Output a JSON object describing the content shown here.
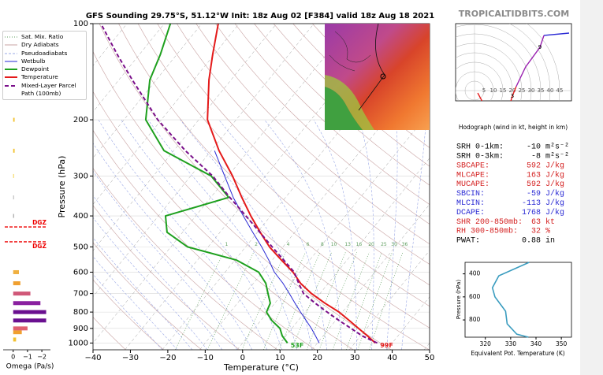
{
  "header": {
    "title": "GFS Sounding 29.75°S, 51.12°W Init: 18z Aug 02 [F384] valid 18z Aug 18 2021",
    "site": "TROPICALTIDBITS.COM"
  },
  "chart_data": [
    {
      "type": "skew-t",
      "xlabel": "Temperature (°C)",
      "ylabel": "Pressure (hPa)",
      "xlim": [
        -40,
        50
      ],
      "ylim": [
        1050,
        100
      ],
      "log_y": true,
      "grid": true,
      "xticks": [
        {
          "value": -40,
          "label": "−40"
        },
        {
          "value": -30,
          "label": "−30"
        },
        {
          "value": -20,
          "label": "−20"
        },
        {
          "value": -10,
          "label": "−10"
        },
        0,
        10,
        20,
        30,
        40,
        50
      ],
      "yticks": [
        100,
        200,
        300,
        400,
        500,
        600,
        700,
        800,
        900,
        1000
      ],
      "background_lines": [
        {
          "name": "Sat. Mix. Ratio",
          "color": "#5e9e5e",
          "dash": "1,2"
        },
        {
          "name": "Dry Adiabats",
          "color": "#c9a3a3",
          "dash": "none"
        },
        {
          "name": "Pseudoadiabats",
          "color": "#9aa8e6",
          "dash": "3,2"
        }
      ],
      "mixing_ratios": [
        1,
        2,
        4,
        6,
        8,
        10,
        13,
        16,
        20,
        25,
        30,
        36
      ],
      "series": [
        {
          "name": "Wetbulb",
          "color": "#2a2ad4",
          "width": 1,
          "dash": "none",
          "y": [
            1000,
            950,
            900,
            850,
            800,
            750,
            700,
            650,
            600,
            550,
            500,
            450,
            400,
            350,
            300,
            250
          ],
          "x": [
            20.5,
            19.5,
            18.4,
            17,
            15.5,
            14,
            12.5,
            10.8,
            8.5,
            7,
            5.1,
            2.7,
            0.2,
            -2.5,
            -4.8,
            -7.5
          ]
        },
        {
          "name": "Dewpoint",
          "color": "#1ea01e",
          "width": 2,
          "dash": "none",
          "y": [
            1000,
            950,
            900,
            850,
            800,
            750,
            700,
            650,
            600,
            550,
            500,
            450,
            400,
            350,
            300,
            250,
            200,
            150,
            125,
            100
          ],
          "x": [
            12,
            10.6,
            10,
            7.8,
            6.4,
            7.4,
            6.8,
            6.2,
            4.3,
            -1.6,
            -14.7,
            -20.2,
            -20.6,
            -3.7,
            -8.4,
            -21,
            -25.9,
            -24.8,
            -22,
            -19.3
          ]
        },
        {
          "name": "Temperature",
          "color": "#e41a1a",
          "width": 2,
          "dash": "none",
          "y": [
            1000,
            950,
            900,
            850,
            800,
            750,
            700,
            650,
            600,
            550,
            500,
            450,
            400,
            350,
            300,
            250,
            200,
            150,
            125,
            100
          ],
          "x": [
            35.5,
            33.4,
            31,
            28.5,
            25.8,
            22,
            18.4,
            15.5,
            13.5,
            10.4,
            7.2,
            4.7,
            2.2,
            -0.2,
            -2.7,
            -6.3,
            -9.4,
            -9,
            -8,
            -6.5
          ]
        },
        {
          "name": "Mixed-Layer Parcel Path (100mb)",
          "color": "#7a0f8a",
          "width": 2,
          "dash": "5,3",
          "y": [
            1000,
            950,
            900,
            850,
            800,
            750,
            700,
            650,
            600,
            550,
            500,
            450,
            400,
            350,
            300,
            250,
            200,
            150,
            125,
            100
          ],
          "x": [
            36,
            32,
            29,
            25.8,
            22.6,
            19.4,
            16.3,
            15,
            13.8,
            11,
            7.9,
            4.6,
            0.9,
            -3.4,
            -8,
            -15.3,
            -22.7,
            -29.5,
            -33.5,
            -37.9
          ]
        }
      ],
      "surface_labels": {
        "dewpoint": "53F",
        "temperature": "99F"
      }
    },
    {
      "type": "barh",
      "xlabel": "Omega (Pa/s)",
      "xlim": [
        0.7,
        -2.6
      ],
      "ylim": [
        1050,
        100
      ],
      "log_y": true,
      "xticks": [
        0,
        {
          "value": -1,
          "label": "−1"
        },
        {
          "value": -2,
          "label": "−2"
        }
      ],
      "pressures": [
        975,
        925,
        900,
        850,
        800,
        750,
        700,
        650,
        600,
        400,
        350,
        300,
        250,
        200
      ],
      "values": [
        -0.2,
        -0.6,
        -1.0,
        -2.3,
        -2.3,
        -1.9,
        -1.2,
        -0.5,
        -0.4,
        -0.05,
        -0.05,
        -0.05,
        -0.1,
        -0.1
      ],
      "colors": [
        "#f2c12e",
        "#f0a030",
        "#e06070",
        "#6a1090",
        "#6a1090",
        "#8a20a0",
        "#d05878",
        "#f0a030",
        "#f0b040",
        "#888888",
        "#aaaaaa",
        "#f2d040",
        "#f2c12e",
        "#f2c12e"
      ],
      "dgz": [
        {
          "label": "DGZ",
          "pressure": 433
        },
        {
          "label": "DGZ",
          "pressure": 482
        }
      ]
    },
    {
      "type": "hodograph",
      "title": "Hodograph (wind in kt, height in km)",
      "rings": [
        5,
        10,
        15,
        20,
        25,
        30,
        35,
        40,
        45
      ],
      "series": [
        {
          "color": "#e41a1a",
          "u": [
            1.7,
            7.9,
            17.9,
            20,
            22
          ],
          "v": [
            -1.3,
            -12.9,
            -9.6,
            -2.9,
            2.1
          ]
        },
        {
          "color": "#9a20b0",
          "u": [
            22,
            27,
            34.6,
            36.7
          ],
          "v": [
            2.1,
            12.5,
            22.9,
            29.2
          ]
        },
        {
          "color": "#2a2ad4",
          "u": [
            36.7,
            50
          ],
          "v": [
            29.2,
            30.4
          ]
        }
      ],
      "heights": [
        {
          "km": 1,
          "u": 7.9,
          "v": -12.9
        },
        {
          "km": 2,
          "u": 17.9,
          "v": -9.6
        },
        {
          "km": 3,
          "u": 20,
          "v": -2.9
        },
        {
          "km": 9,
          "u": 34.6,
          "v": 22.9
        }
      ]
    },
    {
      "type": "line",
      "xlabel": "Equivalent Pot. Temperature (K)",
      "ylabel": "Pressure (hPa)",
      "xlim": [
        312,
        354
      ],
      "ylim": [
        950,
        300
      ],
      "xticks": [
        320,
        330,
        340,
        350
      ],
      "yticks": [
        400,
        600,
        800
      ],
      "color": "#3a9cbf",
      "y": [
        300,
        417,
        520,
        600,
        724,
        834,
        924,
        950
      ],
      "x": [
        337.3,
        325.3,
        322.8,
        323.8,
        328,
        328.6,
        332.4,
        337
      ]
    }
  ],
  "indices": [
    {
      "label": "SRH 0-1km:",
      "value": -10,
      "unit": "m²s⁻²",
      "color": "#000000"
    },
    {
      "label": "SRH 0-3km:",
      "value": -8,
      "unit": "m²s⁻²",
      "color": "#000000"
    },
    {
      "label": "SBCAPE:",
      "value": 592,
      "unit": "J/kg",
      "color": "#d42020"
    },
    {
      "label": "MLCAPE:",
      "value": 163,
      "unit": "J/kg",
      "color": "#d42020"
    },
    {
      "label": "MUCAPE:",
      "value": 592,
      "unit": "J/kg",
      "color": "#d42020"
    },
    {
      "label": "SBCIN:",
      "value": -59,
      "unit": "J/kg",
      "color": "#2a2ad4"
    },
    {
      "label": "MLCIN:",
      "value": -113,
      "unit": "J/kg",
      "color": "#2a2ad4"
    },
    {
      "label": "DCAPE:",
      "value": 1768,
      "unit": "J/kg",
      "color": "#2a2ad4"
    },
    {
      "label": "SHR 200-850mb:",
      "value": 63,
      "unit": "kt",
      "color": "#d42020"
    },
    {
      "label": "RH 300-850mb:",
      "value": 32,
      "unit": "%",
      "color": "#d42020"
    },
    {
      "label": "PWAT:",
      "value": 0.88,
      "unit": "in",
      "color": "#000000"
    }
  ]
}
